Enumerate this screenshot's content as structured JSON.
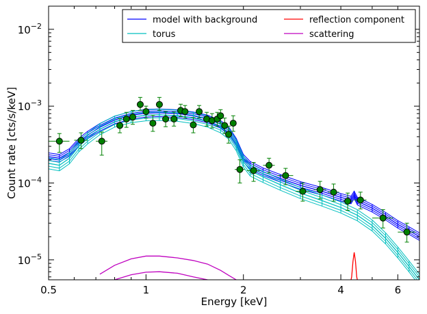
{
  "chart_data": {
    "type": "line",
    "title": "",
    "xlabel": "Energy [keV]",
    "ylabel": "Count rate [cts/s/keV]",
    "xscale": "log",
    "yscale": "log",
    "xlim": [
      0.5,
      7.0
    ],
    "ylim": [
      5.5e-06,
      0.02
    ],
    "x_ticks": [
      {
        "value": 0.5,
        "label": "0.5"
      },
      {
        "value": 1,
        "label": "1"
      },
      {
        "value": 2,
        "label": "2"
      },
      {
        "value": 4,
        "label": "4"
      },
      {
        "value": 6,
        "label": "6"
      }
    ],
    "y_ticks": [
      {
        "value": 1e-05,
        "base": "10",
        "exp": "−5"
      },
      {
        "value": 0.0001,
        "base": "10",
        "exp": "−4"
      },
      {
        "value": 0.001,
        "base": "10",
        "exp": "−3"
      },
      {
        "value": 0.01,
        "base": "10",
        "exp": "−2"
      }
    ],
    "legend_position": "top-right",
    "legend": [
      {
        "name": "model with background",
        "color": "#0000ff"
      },
      {
        "name": "reflection component",
        "color": "#ff0000"
      },
      {
        "name": "torus",
        "color": "#00bfbf"
      },
      {
        "name": "scattering",
        "color": "#bf00bf"
      }
    ],
    "series": [
      {
        "name": "model with background",
        "color": "#0000ff",
        "x": [
          0.5,
          0.54,
          0.58,
          0.62,
          0.66,
          0.72,
          0.8,
          0.9,
          1.0,
          1.1,
          1.25,
          1.4,
          1.55,
          1.7,
          1.8,
          1.9,
          2.0,
          2.1,
          2.3,
          2.6,
          3.0,
          3.5,
          4.0,
          4.3,
          4.4,
          4.5,
          5.0,
          5.5,
          6.0,
          6.5,
          7.0
        ],
        "y": [
          0.00022,
          0.00021,
          0.00025,
          0.00034,
          0.00042,
          0.00053,
          0.00066,
          0.00076,
          0.00081,
          0.00082,
          0.0008,
          0.00075,
          0.00068,
          0.00058,
          0.00048,
          0.00034,
          0.00021,
          0.00017,
          0.00014,
          0.000115,
          9.3e-05,
          7.8e-05,
          6.5e-05,
          6e-05,
          7e-05,
          5.8e-05,
          4.7e-05,
          3.7e-05,
          2.9e-05,
          2.4e-05,
          2e-05
        ],
        "band": 0.06
      },
      {
        "name": "torus",
        "color": "#00bfbf",
        "x": [
          0.5,
          0.54,
          0.58,
          0.62,
          0.66,
          0.72,
          0.8,
          0.9,
          1.0,
          1.1,
          1.25,
          1.4,
          1.55,
          1.7,
          1.8,
          1.9,
          2.0,
          2.1,
          2.3,
          2.6,
          3.0,
          3.5,
          4.0,
          4.5,
          5.0,
          5.5,
          6.0,
          6.5,
          7.0
        ],
        "y": [
          0.00018,
          0.00017,
          0.00021,
          0.0003,
          0.00038,
          0.0005,
          0.00063,
          0.00072,
          0.00076,
          0.00077,
          0.00075,
          0.0007,
          0.00063,
          0.00053,
          0.00044,
          0.00031,
          0.00019,
          0.000145,
          0.00012,
          9.5e-05,
          7.4e-05,
          5.9e-05,
          4.8e-05,
          3.8e-05,
          2.8e-05,
          1.9e-05,
          1.25e-05,
          8.2e-06,
          5.5e-06
        ],
        "band": 0.09
      },
      {
        "name": "reflection component",
        "color": "#ff0000",
        "x": [
          4.28,
          4.32,
          4.36,
          4.4,
          4.44,
          4.48,
          4.52
        ],
        "y": [
          5e-06,
          6e-06,
          9.5e-06,
          1.25e-05,
          9.5e-06,
          6e-06,
          5e-06
        ]
      },
      {
        "name": "scattering",
        "color": "#bf00bf",
        "x": [
          0.72,
          0.8,
          0.9,
          1.0,
          1.1,
          1.25,
          1.4,
          1.55,
          1.7,
          1.8,
          1.9,
          2.0
        ],
        "y": [
          6.5e-06,
          8.5e-06,
          1.03e-05,
          1.12e-05,
          1.12e-05,
          1.06e-05,
          9.8e-06,
          8.8e-06,
          7.3e-06,
          6.3e-06,
          5.5e-06,
          5e-06
        ]
      },
      {
        "name": "scattering (lower)",
        "color": "#bf00bf",
        "x": [
          0.8,
          0.9,
          1.0,
          1.1,
          1.25,
          1.4,
          1.55
        ],
        "y": [
          5.5e-06,
          6.4e-06,
          6.9e-06,
          7e-06,
          6.7e-06,
          6e-06,
          5.5e-06
        ]
      }
    ],
    "data_points": {
      "color": "#008000",
      "points": [
        {
          "x": 0.54,
          "y": 0.00035,
          "xerr": [
            0.5,
            0.58
          ],
          "yerr": [
            0.00025,
            0.00044
          ]
        },
        {
          "x": 0.63,
          "y": 0.00036,
          "xerr": [
            0.6,
            0.66
          ],
          "yerr": [
            0.00028,
            0.00045
          ]
        },
        {
          "x": 0.73,
          "y": 0.00035,
          "xerr": [
            0.7,
            0.76
          ],
          "yerr": [
            0.00023,
            0.00046
          ]
        },
        {
          "x": 0.83,
          "y": 0.00056,
          "xerr": [
            0.81,
            0.85
          ],
          "yerr": [
            0.00045,
            0.00069
          ]
        },
        {
          "x": 0.87,
          "y": 0.00068,
          "xerr": [
            0.85,
            0.89
          ],
          "yerr": [
            0.00053,
            0.00083
          ]
        },
        {
          "x": 0.91,
          "y": 0.00072,
          "xerr": [
            0.89,
            0.93
          ],
          "yerr": [
            0.00058,
            0.00088
          ]
        },
        {
          "x": 0.96,
          "y": 0.00105,
          "xerr": [
            0.94,
            0.98
          ],
          "yerr": [
            0.00088,
            0.0013
          ]
        },
        {
          "x": 1.0,
          "y": 0.00085,
          "xerr": [
            0.98,
            1.02
          ],
          "yerr": [
            0.0007,
            0.001
          ]
        },
        {
          "x": 1.05,
          "y": 0.0006,
          "xerr": [
            1.03,
            1.07
          ],
          "yerr": [
            0.00047,
            0.00076
          ]
        },
        {
          "x": 1.1,
          "y": 0.00105,
          "xerr": [
            1.08,
            1.12
          ],
          "yerr": [
            0.00088,
            0.0013
          ]
        },
        {
          "x": 1.15,
          "y": 0.00068,
          "xerr": [
            1.13,
            1.18
          ],
          "yerr": [
            0.00054,
            0.00085
          ]
        },
        {
          "x": 1.22,
          "y": 0.00068,
          "xerr": [
            1.19,
            1.25
          ],
          "yerr": [
            0.00055,
            0.00084
          ]
        },
        {
          "x": 1.28,
          "y": 0.00088,
          "xerr": [
            1.25,
            1.3
          ],
          "yerr": [
            0.00073,
            0.00106
          ]
        },
        {
          "x": 1.32,
          "y": 0.00085,
          "xerr": [
            1.3,
            1.35
          ],
          "yerr": [
            0.0007,
            0.00102
          ]
        },
        {
          "x": 1.4,
          "y": 0.00057,
          "xerr": [
            1.37,
            1.43
          ],
          "yerr": [
            0.00045,
            0.00071
          ]
        },
        {
          "x": 1.46,
          "y": 0.00085,
          "xerr": [
            1.43,
            1.49
          ],
          "yerr": [
            0.0007,
            0.00102
          ]
        },
        {
          "x": 1.54,
          "y": 0.00068,
          "xerr": [
            1.51,
            1.57
          ],
          "yerr": [
            0.00055,
            0.00083
          ]
        },
        {
          "x": 1.6,
          "y": 0.00065,
          "xerr": [
            1.57,
            1.63
          ],
          "yerr": [
            0.00052,
            0.0008
          ]
        },
        {
          "x": 1.66,
          "y": 0.00068,
          "xerr": [
            1.63,
            1.69
          ],
          "yerr": [
            0.00055,
            0.00083
          ]
        },
        {
          "x": 1.7,
          "y": 0.00075,
          "xerr": [
            1.68,
            1.72
          ],
          "yerr": [
            0.0006,
            0.0009
          ]
        },
        {
          "x": 1.75,
          "y": 0.00056,
          "xerr": [
            1.72,
            1.78
          ],
          "yerr": [
            0.00044,
            0.0007
          ]
        },
        {
          "x": 1.8,
          "y": 0.00043,
          "xerr": [
            1.77,
            1.83
          ],
          "yerr": [
            0.00033,
            0.00055
          ]
        },
        {
          "x": 1.86,
          "y": 0.0006,
          "xerr": [
            1.83,
            1.9
          ],
          "yerr": [
            0.00047,
            0.00075
          ]
        },
        {
          "x": 1.95,
          "y": 0.00015,
          "xerr": [
            1.88,
            2.02
          ],
          "yerr": [
            0.0001,
            0.0002
          ]
        },
        {
          "x": 2.15,
          "y": 0.000145,
          "xerr": [
            2.05,
            2.25
          ],
          "yerr": [
            0.000105,
            0.000185
          ]
        },
        {
          "x": 2.4,
          "y": 0.00017,
          "xerr": [
            2.3,
            2.5
          ],
          "yerr": [
            0.000135,
            0.00021
          ]
        },
        {
          "x": 2.7,
          "y": 0.000125,
          "xerr": [
            2.55,
            2.85
          ],
          "yerr": [
            9.5e-05,
            0.000155
          ]
        },
        {
          "x": 3.05,
          "y": 7.8e-05,
          "xerr": [
            2.9,
            3.2
          ],
          "yerr": [
            5.8e-05,
            0.0001
          ]
        },
        {
          "x": 3.45,
          "y": 8.2e-05,
          "xerr": [
            3.3,
            3.6
          ],
          "yerr": [
            6.2e-05,
            0.000105
          ]
        },
        {
          "x": 3.8,
          "y": 7.6e-05,
          "xerr": [
            3.65,
            3.95
          ],
          "yerr": [
            5.8e-05,
            9.7e-05
          ]
        },
        {
          "x": 4.2,
          "y": 5.8e-05,
          "xerr": [
            4.05,
            4.35
          ],
          "yerr": [
            4.4e-05,
            7.4e-05
          ]
        },
        {
          "x": 4.6,
          "y": 6e-05,
          "xerr": [
            4.4,
            4.8
          ],
          "yerr": [
            4.6e-05,
            7.6e-05
          ]
        },
        {
          "x": 5.4,
          "y": 3.5e-05,
          "xerr": [
            5.0,
            5.8
          ],
          "yerr": [
            2.6e-05,
            4.5e-05
          ]
        },
        {
          "x": 6.4,
          "y": 2.3e-05,
          "xerr": [
            6.0,
            6.8
          ],
          "yerr": [
            1.7e-05,
            3e-05
          ]
        }
      ]
    }
  }
}
